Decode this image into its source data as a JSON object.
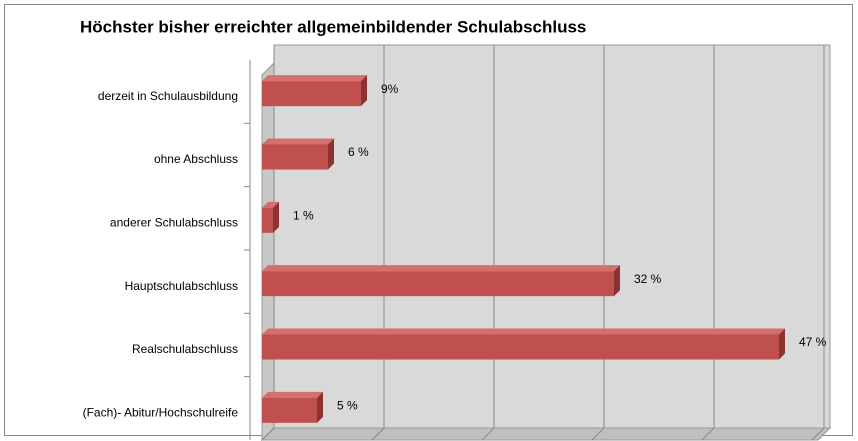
{
  "chart_data": {
    "type": "bar",
    "orientation": "horizontal",
    "title": "Höchster bisher erreichter allgemeinbildender Schulabschluss",
    "categories": [
      "derzeit in Schulausbildung",
      "ohne Abschluss",
      "anderer Schulabschluss",
      "Hauptschulabschluss",
      "Realschulabschluss",
      "(Fach)- Abitur/Hochschulreife"
    ],
    "values": [
      9,
      6,
      1,
      32,
      47,
      5
    ],
    "value_labels": [
      "9%",
      "6 %",
      "1 %",
      "32 %",
      "47 %",
      "5 %"
    ],
    "color": "#c0504d",
    "xlim": [
      0,
      50
    ],
    "xticks": [
      0,
      10,
      20,
      30,
      40,
      50
    ],
    "grid": true
  }
}
